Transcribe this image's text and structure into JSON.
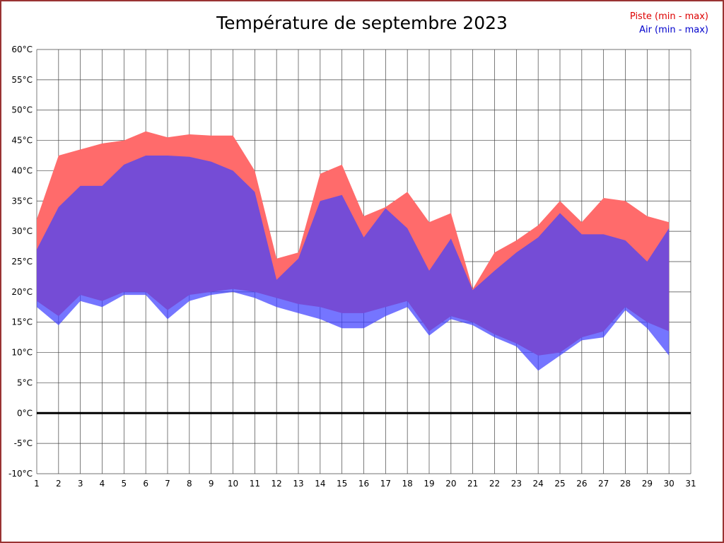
{
  "frame": {
    "border_color": "#993333",
    "background": "#ffffff"
  },
  "title": "Température de septembre 2023",
  "legend": {
    "piste_label": "Piste (min - max)",
    "piste_color": "#dd0000",
    "air_label": "Air (min - max)",
    "air_color": "#0000cc"
  },
  "chart_data": {
    "type": "area",
    "title": "Température de septembre 2023",
    "xlabel": "",
    "ylabel": "",
    "xlim": [
      1,
      31
    ],
    "ylim": [
      -10,
      60
    ],
    "ytick_step": 5,
    "ytick_suffix": "°C",
    "grid": true,
    "zero_line": true,
    "legend_position": "top-right",
    "x": [
      1,
      2,
      3,
      4,
      5,
      6,
      7,
      8,
      9,
      10,
      11,
      12,
      13,
      14,
      15,
      16,
      17,
      18,
      19,
      20,
      21,
      22,
      23,
      24,
      25,
      26,
      27,
      28,
      29,
      30
    ],
    "series": [
      {
        "name": "Piste (min - max)",
        "color": "#ff6b6b",
        "opacity": 1,
        "max": [
          32,
          42.5,
          43.5,
          44.5,
          45,
          46.5,
          45.5,
          46,
          45.8,
          45.8,
          40,
          25.5,
          26.5,
          39.5,
          41,
          32.5,
          34,
          36.5,
          31.5,
          33,
          20.5,
          26.5,
          28.5,
          31,
          35,
          31.5,
          35.5,
          35,
          32.5,
          31.5
        ],
        "min": [
          18.5,
          16,
          19.5,
          18.5,
          20,
          20,
          17,
          19.5,
          20,
          20.5,
          20,
          19,
          18,
          17.5,
          16.5,
          16.5,
          17.5,
          18.5,
          13.5,
          16,
          15,
          13,
          11.5,
          9.5,
          10,
          12.5,
          13.5,
          17.5,
          15,
          13.5
        ]
      },
      {
        "name": "Air (min - max)",
        "color": "#4040ff",
        "opacity": 0.72,
        "max": [
          27,
          34,
          37.5,
          37.5,
          41,
          42.5,
          42.5,
          42.3,
          41.5,
          40,
          36.5,
          22,
          25.5,
          35,
          36,
          29,
          33.8,
          30.5,
          23.5,
          28.8,
          20.3,
          23.5,
          26.5,
          29,
          33,
          29.5,
          29.5,
          28.5,
          25,
          30.5
        ],
        "min": [
          17.5,
          14.5,
          18.5,
          17.5,
          19.5,
          19.5,
          15.5,
          18.5,
          19.5,
          20,
          19,
          17.5,
          16.5,
          15.5,
          14,
          14,
          16,
          17.5,
          12.8,
          15.5,
          14.5,
          12.5,
          11,
          7,
          9.5,
          12,
          12.5,
          17,
          14,
          9.5
        ]
      }
    ]
  }
}
